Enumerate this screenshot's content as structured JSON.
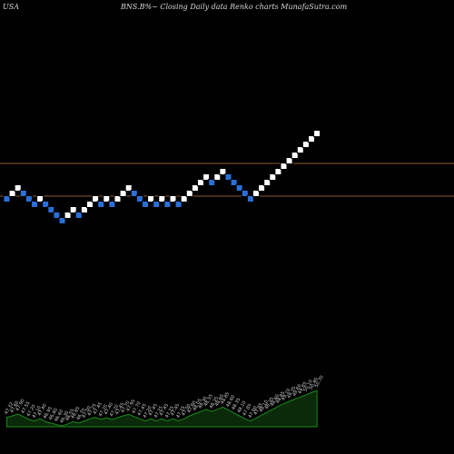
{
  "header": {
    "left": "USA",
    "center": "BNS.B%~  Closing Daily data  Renko  charts MunafaSutra.com"
  },
  "colors": {
    "background": "#000000",
    "up": "#ffffff",
    "down": "#2a6fd8",
    "ref_line": "#8b5a2b",
    "volume_line": "#1d8a1d"
  },
  "chart_data": {
    "type": "renko",
    "bricks": [
      {
        "y": 219,
        "dir": "down"
      },
      {
        "y": 213,
        "dir": "up"
      },
      {
        "y": 207,
        "dir": "up"
      },
      {
        "y": 213,
        "dir": "down"
      },
      {
        "y": 219,
        "dir": "down"
      },
      {
        "y": 225,
        "dir": "down"
      },
      {
        "y": 219,
        "dir": "up"
      },
      {
        "y": 225,
        "dir": "down"
      },
      {
        "y": 231,
        "dir": "down"
      },
      {
        "y": 237,
        "dir": "down"
      },
      {
        "y": 243,
        "dir": "down"
      },
      {
        "y": 237,
        "dir": "up"
      },
      {
        "y": 231,
        "dir": "up"
      },
      {
        "y": 237,
        "dir": "down"
      },
      {
        "y": 231,
        "dir": "up"
      },
      {
        "y": 225,
        "dir": "up"
      },
      {
        "y": 219,
        "dir": "up"
      },
      {
        "y": 225,
        "dir": "down"
      },
      {
        "y": 219,
        "dir": "up"
      },
      {
        "y": 225,
        "dir": "down"
      },
      {
        "y": 219,
        "dir": "up"
      },
      {
        "y": 213,
        "dir": "up"
      },
      {
        "y": 207,
        "dir": "up"
      },
      {
        "y": 213,
        "dir": "down"
      },
      {
        "y": 219,
        "dir": "down"
      },
      {
        "y": 225,
        "dir": "down"
      },
      {
        "y": 219,
        "dir": "up"
      },
      {
        "y": 225,
        "dir": "down"
      },
      {
        "y": 219,
        "dir": "up"
      },
      {
        "y": 225,
        "dir": "down"
      },
      {
        "y": 219,
        "dir": "up"
      },
      {
        "y": 225,
        "dir": "down"
      },
      {
        "y": 219,
        "dir": "up"
      },
      {
        "y": 213,
        "dir": "up"
      },
      {
        "y": 207,
        "dir": "up"
      },
      {
        "y": 201,
        "dir": "up"
      },
      {
        "y": 195,
        "dir": "up"
      },
      {
        "y": 201,
        "dir": "down"
      },
      {
        "y": 195,
        "dir": "up"
      },
      {
        "y": 189,
        "dir": "up"
      },
      {
        "y": 195,
        "dir": "down"
      },
      {
        "y": 201,
        "dir": "down"
      },
      {
        "y": 207,
        "dir": "down"
      },
      {
        "y": 213,
        "dir": "down"
      },
      {
        "y": 219,
        "dir": "down"
      },
      {
        "y": 213,
        "dir": "up"
      },
      {
        "y": 207,
        "dir": "up"
      },
      {
        "y": 201,
        "dir": "up"
      },
      {
        "y": 195,
        "dir": "up"
      },
      {
        "y": 189,
        "dir": "up"
      },
      {
        "y": 183,
        "dir": "up"
      },
      {
        "y": 177,
        "dir": "up"
      },
      {
        "y": 171,
        "dir": "up"
      },
      {
        "y": 165,
        "dir": "up"
      },
      {
        "y": 159,
        "dir": "up"
      },
      {
        "y": 153,
        "dir": "up"
      },
      {
        "y": 147,
        "dir": "up"
      }
    ],
    "reference_lines": [
      180,
      216
    ],
    "volume": [
      {
        "v": 0.26,
        "label": "47.32"
      },
      {
        "v": 0.3,
        "label": "47.60"
      },
      {
        "v": 0.35,
        "label": "47.90"
      },
      {
        "v": 0.28,
        "label": "47.55"
      },
      {
        "v": 0.2,
        "label": "47.20"
      },
      {
        "v": 0.16,
        "label": "47.10"
      },
      {
        "v": 0.22,
        "label": "47.40"
      },
      {
        "v": 0.14,
        "label": "46.95"
      },
      {
        "v": 0.1,
        "label": "46.80"
      },
      {
        "v": 0.06,
        "label": "46.60"
      },
      {
        "v": 0.02,
        "label": "46.30"
      },
      {
        "v": 0.08,
        "label": "46.55"
      },
      {
        "v": 0.14,
        "label": "46.85"
      },
      {
        "v": 0.1,
        "label": "46.70"
      },
      {
        "v": 0.16,
        "label": "47.00"
      },
      {
        "v": 0.22,
        "label": "47.25"
      },
      {
        "v": 0.26,
        "label": "47.45"
      },
      {
        "v": 0.2,
        "label": "47.20"
      },
      {
        "v": 0.25,
        "label": "47.40"
      },
      {
        "v": 0.2,
        "label": "47.20"
      },
      {
        "v": 0.25,
        "label": "47.45"
      },
      {
        "v": 0.3,
        "label": "47.70"
      },
      {
        "v": 0.34,
        "label": "47.95"
      },
      {
        "v": 0.28,
        "label": "47.70"
      },
      {
        "v": 0.22,
        "label": "47.45"
      },
      {
        "v": 0.16,
        "label": "47.20"
      },
      {
        "v": 0.22,
        "label": "47.45"
      },
      {
        "v": 0.16,
        "label": "47.25"
      },
      {
        "v": 0.22,
        "label": "47.45"
      },
      {
        "v": 0.16,
        "label": "47.25"
      },
      {
        "v": 0.22,
        "label": "47.45"
      },
      {
        "v": 0.16,
        "label": "47.25"
      },
      {
        "v": 0.22,
        "label": "47.50"
      },
      {
        "v": 0.3,
        "label": "47.80"
      },
      {
        "v": 0.36,
        "label": "48.05"
      },
      {
        "v": 0.42,
        "label": "48.30"
      },
      {
        "v": 0.48,
        "label": "48.55"
      },
      {
        "v": 0.42,
        "label": "48.35"
      },
      {
        "v": 0.48,
        "label": "48.60"
      },
      {
        "v": 0.54,
        "label": "48.85"
      },
      {
        "v": 0.46,
        "label": "48.60"
      },
      {
        "v": 0.38,
        "label": "48.35"
      },
      {
        "v": 0.3,
        "label": "48.10"
      },
      {
        "v": 0.22,
        "label": "47.85"
      },
      {
        "v": 0.16,
        "label": "47.60"
      },
      {
        "v": 0.24,
        "label": "47.85"
      },
      {
        "v": 0.32,
        "label": "48.10"
      },
      {
        "v": 0.4,
        "label": "48.35"
      },
      {
        "v": 0.48,
        "label": "48.60"
      },
      {
        "v": 0.56,
        "label": "48.85"
      },
      {
        "v": 0.64,
        "label": "49.10"
      },
      {
        "v": 0.7,
        "label": "49.35"
      },
      {
        "v": 0.76,
        "label": "49.60"
      },
      {
        "v": 0.82,
        "label": "49.85"
      },
      {
        "v": 0.88,
        "label": "50.10"
      },
      {
        "v": 0.94,
        "label": "50.40"
      },
      {
        "v": 1.0,
        "label": "50.70"
      }
    ]
  }
}
